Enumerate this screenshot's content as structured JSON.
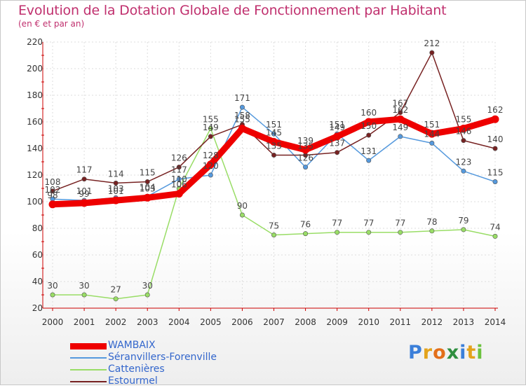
{
  "header": {
    "title": "Evolution de la Dotation Globale de Fonctionnement par Habitant",
    "subtitle": "(en € et par an)"
  },
  "logo": {
    "letters": [
      "P",
      "r",
      "o",
      "x",
      "i",
      "t",
      "i"
    ],
    "colors": [
      "#3b7fd9",
      "#e3a31c",
      "#e36f1a",
      "#2f8f3f",
      "#3b7fd9",
      "#e3a31c",
      "#6cc23f"
    ]
  },
  "colors": {
    "title": "#c0306e",
    "grid": "#dddddd",
    "axis": "#cc0000",
    "label": "#444444"
  },
  "chart_data": {
    "type": "line",
    "title": "Evolution de la Dotation Globale de Fonctionnement par Habitant",
    "subtitle": "(en € et par an)",
    "x": [
      "2000",
      "2001",
      "2002",
      "2003",
      "2004",
      "2005",
      "2006",
      "2007",
      "2008",
      "2009",
      "2010",
      "2011",
      "2012",
      "2013",
      "2014"
    ],
    "yticks": [
      "20",
      "40",
      "60",
      "80",
      "100",
      "120",
      "140",
      "160",
      "180",
      "200",
      "220"
    ],
    "ylim": [
      20,
      220
    ],
    "grid": true,
    "legend_position": "bottom-left",
    "series": [
      {
        "name": "Cattenières",
        "color": "#99dd66",
        "values": [
          30,
          30,
          27,
          30,
          110,
          155,
          90,
          75,
          76,
          77,
          77,
          77,
          78,
          79,
          74
        ],
        "labels": [
          "30",
          "30",
          "27",
          "30",
          "110",
          "155",
          "90",
          "75",
          "76",
          "77",
          "77",
          "77",
          "78",
          "79",
          "74"
        ]
      },
      {
        "name": "Séranvillers-Forenville",
        "color": "#5599dd",
        "values": [
          102,
          101,
          103,
          104,
          117,
          120,
          171,
          151,
          126,
          151,
          131,
          149,
          144,
          123,
          115
        ],
        "labels": [
          "102",
          "101",
          "103",
          "104",
          "117",
          "120",
          "171",
          "151",
          "126",
          "151",
          "131",
          "149",
          "144",
          "123",
          "115"
        ]
      },
      {
        "name": "Estourmel",
        "color": "#772222",
        "values": [
          108,
          117,
          114,
          115,
          126,
          149,
          158,
          135,
          135,
          137,
          150,
          167,
          212,
          146,
          140
        ],
        "labels": [
          "108",
          "117",
          "114",
          "115",
          "126",
          "149",
          "158",
          "135",
          "135",
          "137",
          "150",
          "167",
          "212",
          "146",
          "140"
        ]
      },
      {
        "name": "WAMBAIX",
        "color": "#ee0000",
        "values": [
          98,
          99,
          101,
          103,
          106,
          128,
          155,
          145,
          139,
          149,
          160,
          162,
          151,
          155,
          162
        ],
        "labels": [
          "98",
          "99",
          "101",
          "103",
          "106",
          "128",
          "155",
          "145",
          "139",
          "149",
          "160",
          "162",
          "151",
          "155",
          "162"
        ]
      }
    ],
    "legend": [
      {
        "name": "WAMBAIX",
        "color": "#ee0000",
        "text_color": "#3366cc",
        "thickness": 9
      },
      {
        "name": "Séranvillers-Forenville",
        "color": "#5599dd",
        "text_color": "#3366cc",
        "thickness": 2
      },
      {
        "name": "Cattenières",
        "color": "#99dd66",
        "text_color": "#3366cc",
        "thickness": 2
      },
      {
        "name": "Estourmel",
        "color": "#772222",
        "text_color": "#3366cc",
        "thickness": 2
      }
    ]
  }
}
